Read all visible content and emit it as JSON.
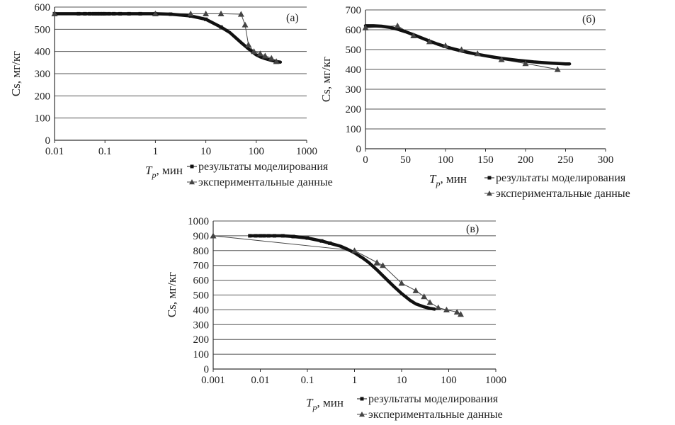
{
  "colors": {
    "model_line": "#111111",
    "experiment_line": "#444444",
    "grid": "#555555",
    "axis": "#333333",
    "text": "#222222",
    "background": "#ffffff"
  },
  "chart_data": [
    {
      "type": "line",
      "panel_label": "(а)",
      "ylabel": "Cs, мг/кг",
      "xlabel_main": "T",
      "xlabel_sub": "p",
      "xlabel_rest": ", мин",
      "x_scale": "log",
      "xlim": [
        0.01,
        1000
      ],
      "ylim": [
        0,
        600
      ],
      "x_ticks": [
        "0.01",
        "0.1",
        "1",
        "10",
        "100",
        "1000"
      ],
      "y_ticks": [
        "0",
        "100",
        "200",
        "300",
        "400",
        "500",
        "600"
      ],
      "grid": "horizontal",
      "legend_position": "bottom-right",
      "series": [
        {
          "name": "результаты моделирования",
          "marker": "square",
          "x": [
            0.01,
            0.03,
            0.04,
            0.05,
            0.06,
            0.07,
            0.08,
            0.09,
            0.1,
            0.12,
            0.15,
            0.2,
            0.3,
            0.5,
            1,
            2,
            5,
            10,
            20,
            30,
            40,
            50,
            60,
            70,
            80,
            90,
            100,
            120,
            150,
            200,
            250,
            300
          ],
          "y": [
            570,
            570,
            570,
            570,
            570,
            570,
            570,
            570,
            570,
            570,
            570,
            570,
            570,
            570,
            570,
            568,
            560,
            545,
            510,
            485,
            460,
            440,
            425,
            412,
            402,
            393,
            385,
            376,
            368,
            360,
            355,
            352
          ]
        },
        {
          "name": "экспериментальные данные",
          "marker": "triangle",
          "x": [
            0.01,
            1,
            5,
            10,
            20,
            50,
            60,
            70,
            90,
            120,
            150,
            200,
            250
          ],
          "y": [
            570,
            570,
            570,
            570,
            570,
            568,
            520,
            430,
            400,
            390,
            380,
            370,
            355
          ]
        }
      ]
    },
    {
      "type": "line",
      "panel_label": "(б)",
      "ylabel": "Cs, мг/кг",
      "xlabel_main": "T",
      "xlabel_sub": "p",
      "xlabel_rest": ", мин",
      "x_scale": "linear",
      "xlim": [
        0,
        300
      ],
      "ylim": [
        0,
        700
      ],
      "x_ticks": [
        "0",
        "50",
        "100",
        "150",
        "200",
        "250",
        "300"
      ],
      "y_ticks": [
        "0",
        "100",
        "200",
        "300",
        "400",
        "500",
        "600",
        "700"
      ],
      "grid": "horizontal",
      "legend_position": "bottom-right",
      "series": [
        {
          "name": "результаты моделирования",
          "marker": "none",
          "x": [
            0,
            10,
            20,
            30,
            40,
            50,
            60,
            70,
            80,
            90,
            100,
            110,
            120,
            130,
            140,
            150,
            160,
            170,
            180,
            190,
            200,
            210,
            220,
            230,
            240,
            250,
            255
          ],
          "y": [
            620,
            620,
            618,
            612,
            603,
            590,
            575,
            559,
            543,
            528,
            515,
            503,
            493,
            484,
            476,
            469,
            462,
            456,
            451,
            446,
            442,
            438,
            435,
            432,
            430,
            428,
            428
          ]
        },
        {
          "name": "экспериментальные данные",
          "marker": "triangle",
          "x": [
            0,
            40,
            60,
            80,
            100,
            120,
            140,
            170,
            200,
            240
          ],
          "y": [
            610,
            620,
            570,
            540,
            520,
            500,
            480,
            450,
            430,
            400
          ]
        }
      ]
    },
    {
      "type": "line",
      "panel_label": "(в)",
      "ylabel": "Cs, мг/кг",
      "xlabel_main": "T",
      "xlabel_sub": "p",
      "xlabel_rest": ", мин",
      "x_scale": "log",
      "xlim": [
        0.001,
        1000
      ],
      "ylim": [
        0,
        1000
      ],
      "x_ticks": [
        "0.001",
        "0.01",
        "0.1",
        "1",
        "10",
        "100",
        "1000"
      ],
      "y_ticks": [
        "0",
        "100",
        "200",
        "300",
        "400",
        "500",
        "600",
        "700",
        "800",
        "900",
        "1000"
      ],
      "grid": "horizontal",
      "legend_position": "bottom-right",
      "series": [
        {
          "name": "результаты моделирования",
          "marker": "square",
          "x": [
            0.006,
            0.008,
            0.01,
            0.012,
            0.015,
            0.02,
            0.03,
            0.05,
            0.1,
            0.2,
            0.3,
            0.5,
            0.7,
            1,
            1.5,
            2,
            3,
            5,
            7,
            10,
            15,
            20,
            30,
            40,
            50
          ],
          "y": [
            900,
            900,
            900,
            900,
            900,
            900,
            900,
            895,
            885,
            865,
            850,
            830,
            810,
            785,
            750,
            720,
            670,
            600,
            555,
            510,
            465,
            440,
            420,
            410,
            405
          ]
        },
        {
          "name": "экспериментальные данные",
          "marker": "triangle",
          "x": [
            0.001,
            1,
            3,
            4,
            10,
            20,
            30,
            40,
            60,
            90,
            150,
            180
          ],
          "y": [
            900,
            800,
            720,
            700,
            580,
            530,
            490,
            450,
            415,
            400,
            385,
            370
          ]
        }
      ]
    }
  ]
}
